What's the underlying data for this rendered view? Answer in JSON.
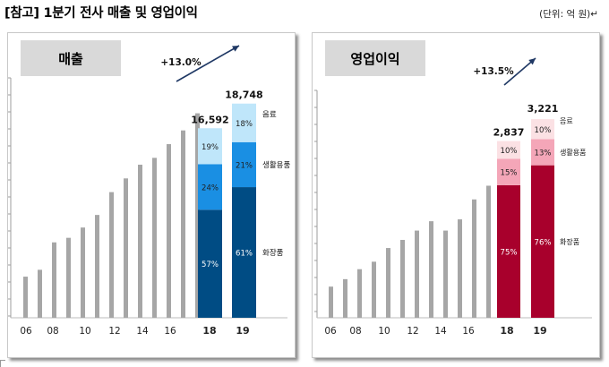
{
  "page": {
    "title": "[참고] 1분기 전사 매출 및 영업이익",
    "unit_note": "(단위: 억 원)↵"
  },
  "colors": {
    "history_bar": "#a6a6a6",
    "sales_segments": [
      "#004c84",
      "#1a8fe3",
      "#bfe6fa"
    ],
    "profit_segments": [
      "#a8002c",
      "#f4a6b8",
      "#fbe1e4"
    ],
    "arrow": "#1f3864"
  },
  "chart_data": [
    {
      "type": "bar",
      "panel_title": "매출",
      "title": "",
      "xlabel": "",
      "ylabel": "",
      "x_tick_labels": [
        "06",
        "08",
        "10",
        "12",
        "14",
        "16",
        "18",
        "19"
      ],
      "history": {
        "years": [
          "05",
          "06",
          "07",
          "08",
          "09",
          "10",
          "11",
          "12",
          "13",
          "14",
          "15",
          "16",
          "17"
        ],
        "values": [
          3600,
          4200,
          6600,
          7000,
          7900,
          9000,
          11000,
          12200,
          13400,
          14000,
          15200,
          16400,
          17900
        ]
      },
      "stacked": {
        "categories": [
          "18",
          "19"
        ],
        "totals": [
          16592,
          18748
        ],
        "total_labels": [
          "16,592",
          "18,748"
        ],
        "segments": [
          {
            "name": "화장품",
            "percents": [
              57,
              61
            ],
            "labels": [
              "57%",
              "61%"
            ]
          },
          {
            "name": "생활용품",
            "percents": [
              24,
              21
            ],
            "labels": [
              "24%",
              "21%"
            ]
          },
          {
            "name": "음료",
            "percents": [
              19,
              18
            ],
            "labels": [
              "19%",
              "18%"
            ]
          }
        ]
      },
      "growth_label": "+13.0%",
      "ylim": [
        0,
        21000
      ],
      "grid": false
    },
    {
      "type": "bar",
      "panel_title": "영업이익",
      "title": "",
      "xlabel": "",
      "ylabel": "",
      "x_tick_labels": [
        "06",
        "08",
        "10",
        "12",
        "14",
        "16",
        "18",
        "19"
      ],
      "history": {
        "years": [
          "05",
          "06",
          "07",
          "08",
          "09",
          "10",
          "11",
          "12",
          "13",
          "14",
          "15",
          "16",
          "17"
        ],
        "values": [
          500,
          620,
          780,
          900,
          1120,
          1250,
          1400,
          1550,
          1400,
          1580,
          1900,
          2120,
          2490
        ]
      },
      "stacked": {
        "categories": [
          "18",
          "19"
        ],
        "totals": [
          2837,
          3221
        ],
        "total_labels": [
          "2,837",
          "3,221"
        ],
        "segments": [
          {
            "name": "화장품",
            "percents": [
              75,
              76
            ],
            "labels": [
              "75%",
              "76%"
            ]
          },
          {
            "name": "생활용품",
            "percents": [
              15,
              13
            ],
            "labels": [
              "15%",
              "13%"
            ]
          },
          {
            "name": "음료",
            "percents": [
              10,
              10
            ],
            "labels": [
              "10%",
              "10%"
            ]
          }
        ]
      },
      "growth_label": "+13.5%",
      "ylim": [
        0,
        3650
      ],
      "grid": false
    }
  ]
}
